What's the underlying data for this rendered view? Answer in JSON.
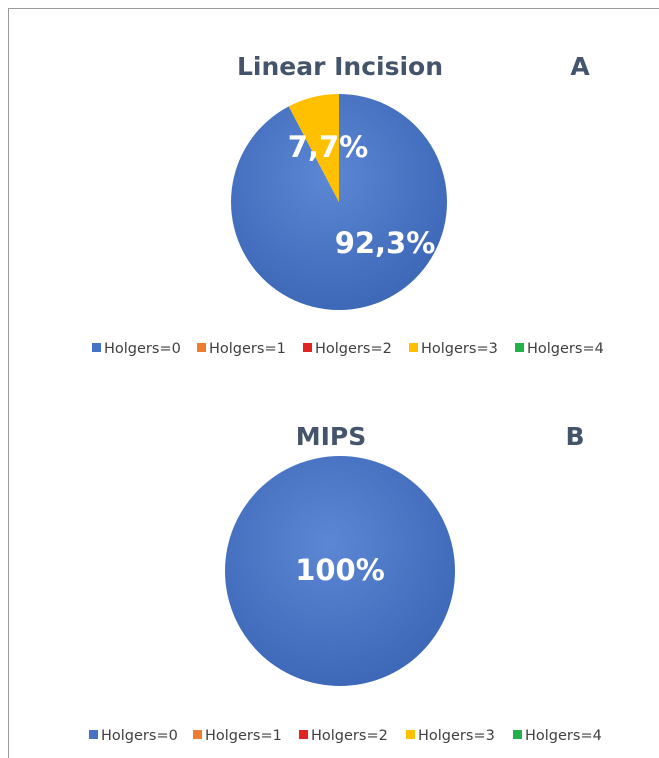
{
  "chart_data": [
    {
      "type": "pie",
      "title": "Linear Incision",
      "panel_label": "A",
      "categories": [
        "Holgers=0",
        "Holgers=1",
        "Holgers=2",
        "Holgers=3",
        "Holgers=4"
      ],
      "values": [
        92.3,
        0,
        0,
        7.7,
        0
      ],
      "data_labels": [
        "92,3%",
        "",
        "",
        "7,7%",
        ""
      ],
      "colors": [
        "#4472c4",
        "#ed7d31",
        "#e02424",
        "#ffc000",
        "#22b04b"
      ],
      "legend": "bottom"
    },
    {
      "type": "pie",
      "title": "MIPS",
      "panel_label": "B",
      "categories": [
        "Holgers=0",
        "Holgers=1",
        "Holgers=2",
        "Holgers=3",
        "Holgers=4"
      ],
      "values": [
        100,
        0,
        0,
        0,
        0
      ],
      "data_labels": [
        "100%",
        "",
        "",
        "",
        ""
      ],
      "colors": [
        "#4472c4",
        "#ed7d31",
        "#e02424",
        "#ffc000",
        "#22b04b"
      ],
      "legend": "bottom"
    }
  ]
}
